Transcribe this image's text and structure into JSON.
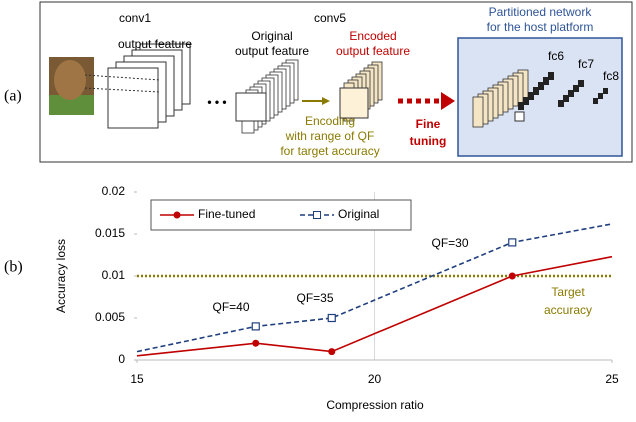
{
  "diagram": {
    "panel_label": "(a)",
    "conv1": "conv1",
    "conv1_sub": "output feature",
    "ellipsis": "• • •",
    "conv5": "conv5",
    "original": [
      "Original",
      "output feature"
    ],
    "encoded": [
      "Encoded",
      "output feature"
    ],
    "encoding": [
      "Encoding",
      "with range of QF",
      "for target accuracy"
    ],
    "fine_tuning": [
      "Fine",
      "tuning"
    ],
    "partitioned": [
      "Partitioned network",
      "for the host platform"
    ],
    "fc6": "fc6",
    "fc7": "fc7",
    "fc8": "fc8"
  },
  "chart_data": {
    "type": "line",
    "panel_label": "(b)",
    "xlabel": "Compression ratio",
    "ylabel": "Accuracy loss",
    "xlim": [
      15,
      25
    ],
    "xticks": [
      15,
      20,
      25
    ],
    "ylim": [
      0,
      0.02
    ],
    "yticks": [
      0,
      0.005,
      0.01,
      0.015,
      0.02
    ],
    "grid": true,
    "series": [
      {
        "name": "Fine-tuned",
        "color": "#c00000",
        "x": [
          15,
          17.5,
          19.1,
          22.9,
          25
        ],
        "values": [
          0.0005,
          0.002,
          0.001,
          0.01,
          0.0123
        ]
      },
      {
        "name": "Original",
        "color": "#1f3f7f",
        "x": [
          15,
          17.5,
          19.1,
          22.9,
          25
        ],
        "values": [
          0.001,
          0.004,
          0.005,
          0.014,
          0.0162
        ]
      }
    ],
    "target": 0.01,
    "target_color": "#8b7a00",
    "annotations": [
      "QF=40",
      "QF=35",
      "QF=30"
    ],
    "target_label": [
      "Target",
      "accuracy"
    ]
  }
}
